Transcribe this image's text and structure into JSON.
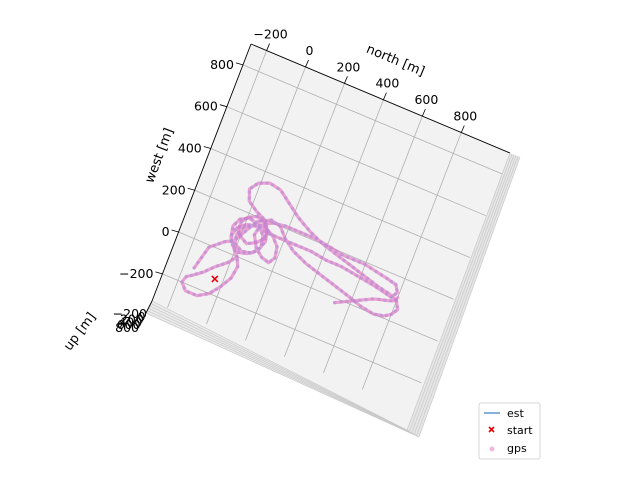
{
  "chart_data": {
    "type": "scatter",
    "projection": "3d",
    "axes": {
      "north": {
        "label": "north [m]",
        "ticks": [
          "−200",
          "0",
          "200",
          "400",
          "600",
          "800"
        ],
        "tick_values": [
          -200,
          0,
          200,
          400,
          600,
          800
        ],
        "range": [
          -280,
          1050
        ]
      },
      "west": {
        "label": "west [m]",
        "ticks": [
          "−200",
          "0",
          "200",
          "400",
          "600",
          "800"
        ],
        "tick_values": [
          -200,
          0,
          200,
          400,
          600,
          800
        ],
        "range": [
          -330,
          900
        ]
      },
      "up": {
        "label": "up [m]",
        "ticks": [
          "−200",
          "0",
          "200",
          "400",
          "600",
          "800"
        ],
        "tick_values": [
          -200,
          0,
          200,
          400,
          600,
          800
        ]
      }
    },
    "grid": true,
    "legend": {
      "placement": "lower-right",
      "entries": [
        {
          "label": "est",
          "marker": "line",
          "color": "#6b9bd2"
        },
        {
          "label": "start",
          "marker": "x",
          "color": "#e8000b"
        },
        {
          "label": "gps",
          "marker": "dot",
          "color": "#e79ad0"
        }
      ]
    },
    "series": [
      {
        "name": "gps",
        "color": "#e377c2",
        "paths": [
          {
            "closed": false,
            "points": [
              [
                -150,
                -120
              ],
              [
                -120,
                -10
              ],
              [
                -60,
                40
              ],
              [
                -20,
                60
              ],
              [
                20,
                130
              ],
              [
                50,
                180
              ],
              [
                110,
                210
              ],
              [
                160,
                200
              ],
              [
                200,
                160
              ],
              [
                260,
                120
              ],
              [
                340,
                90
              ],
              [
                420,
                70
              ],
              [
                500,
                50
              ],
              [
                580,
                30
              ],
              [
                650,
                10
              ],
              [
                720,
                0
              ],
              [
                770,
                10
              ],
              [
                800,
                30
              ],
              [
                820,
                60
              ],
              [
                800,
                95
              ],
              [
                760,
                110
              ],
              [
                700,
                120
              ],
              [
                620,
                140
              ],
              [
                540,
                160
              ],
              [
                460,
                180
              ],
              [
                380,
                200
              ],
              [
                300,
                230
              ],
              [
                220,
                270
              ],
              [
                160,
                310
              ],
              [
                100,
                350
              ],
              [
                40,
                360
              ],
              [
                -10,
                340
              ],
              [
                -40,
                300
              ],
              [
                -20,
                250
              ],
              [
                30,
                220
              ],
              [
                80,
                200
              ],
              [
                110,
                160
              ],
              [
                120,
                110
              ],
              [
                100,
                60
              ],
              [
                60,
                30
              ],
              [
                20,
                20
              ],
              [
                -20,
                40
              ],
              [
                -40,
                80
              ],
              [
                -30,
                120
              ],
              [
                10,
                150
              ],
              [
                60,
                160
              ],
              [
                110,
                150
              ],
              [
                180,
                150
              ],
              [
                260,
                150
              ],
              [
                340,
                150
              ],
              [
                420,
                140
              ],
              [
                500,
                140
              ],
              [
                580,
                130
              ],
              [
                660,
                120
              ],
              [
                720,
                110
              ],
              [
                770,
                100
              ],
              [
                790,
                130
              ],
              [
                770,
                160
              ],
              [
                720,
                170
              ],
              [
                660,
                180
              ],
              [
                600,
                190
              ],
              [
                540,
                190
              ],
              [
                480,
                190
              ],
              [
                420,
                200
              ],
              [
                340,
                210
              ],
              [
                260,
                210
              ],
              [
                180,
                210
              ],
              [
                120,
                200
              ],
              [
                70,
                170
              ],
              [
                60,
                120
              ],
              [
                90,
                70
              ],
              [
                130,
                40
              ],
              [
                170,
                30
              ],
              [
                190,
                60
              ],
              [
                180,
                110
              ],
              [
                140,
                150
              ],
              [
                90,
                170
              ],
              [
                40,
                160
              ],
              [
                0,
                130
              ],
              [
                -20,
                90
              ],
              [
                -10,
                50
              ],
              [
                30,
                30
              ],
              [
                80,
                40
              ],
              [
                110,
                80
              ],
              [
                100,
                130
              ],
              [
                60,
                170
              ],
              [
                10,
                180
              ],
              [
                -30,
                160
              ],
              [
                -50,
                120
              ],
              [
                -40,
                70
              ],
              [
                -10,
                30
              ],
              [
                20,
                0
              ],
              [
                -10,
                -40
              ],
              [
                -60,
                -80
              ],
              [
                -100,
                -120
              ],
              [
                -140,
                -150
              ],
              [
                -170,
                -170
              ],
              [
                -180,
                -200
              ],
              [
                -150,
                -230
              ],
              [
                -90,
                -230
              ],
              [
                -40,
                -200
              ],
              [
                0,
                -150
              ],
              [
                30,
                -100
              ],
              [
                40,
                -40
              ],
              [
                20,
                0
              ]
            ]
          },
          {
            "closed": false,
            "points": [
              [
                530,
                -20
              ],
              [
                570,
                0
              ],
              [
                610,
                20
              ],
              [
                650,
                40
              ],
              [
                690,
                60
              ],
              [
                720,
                70
              ],
              [
                760,
                80
              ],
              [
                790,
                90
              ],
              [
                800,
                110
              ]
            ]
          },
          {
            "closed": true,
            "points": [
              [
                0,
                90
              ],
              [
                40,
                70
              ],
              [
                80,
                90
              ],
              [
                110,
                120
              ],
              [
                110,
                160
              ],
              [
                80,
                190
              ],
              [
                40,
                200
              ],
              [
                0,
                180
              ],
              [
                -20,
                150
              ],
              [
                -20,
                110
              ]
            ]
          }
        ]
      }
    ],
    "start": {
      "north": -40,
      "west": -130
    }
  }
}
